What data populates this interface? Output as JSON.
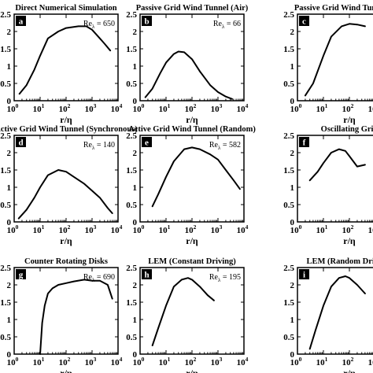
{
  "chart_data": [
    {
      "type": "line",
      "badge": "a",
      "title": "Direct Numerical Simulation",
      "re_label": "Re",
      "re_sub": "λ",
      "re_value": "= 650",
      "xlabel": "r/η",
      "xscale": "log",
      "xlim": [
        1,
        10000
      ],
      "ylim": [
        0,
        2.5
      ],
      "yticks": [
        "0",
        "0.5",
        "1",
        "1.5",
        "2",
        "2.5"
      ],
      "xticks": [
        {
          "base": "10",
          "exp": "0"
        },
        {
          "base": "10",
          "exp": "1"
        },
        {
          "base": "10",
          "exp": "2"
        },
        {
          "base": "10",
          "exp": "3"
        },
        {
          "base": "10",
          "exp": "4"
        }
      ],
      "series": [
        {
          "x": [
            1.6,
            3,
            6,
            10,
            20,
            50,
            100,
            300,
            600,
            1000,
            2000,
            3000,
            5000
          ],
          "y": [
            0.2,
            0.45,
            0.9,
            1.3,
            1.8,
            2.0,
            2.1,
            2.15,
            2.15,
            2.05,
            1.8,
            1.65,
            1.45
          ]
        }
      ]
    },
    {
      "type": "line",
      "badge": "b",
      "title": "Passive Grid Wind Tunnel (Air)",
      "re_label": "Re",
      "re_sub": "λ",
      "re_value": "= 66",
      "xlabel": "r/η",
      "xscale": "log",
      "xlim": [
        1,
        10000
      ],
      "ylim": [
        0,
        2.5
      ],
      "yticks": [
        "0",
        "0.5",
        "1",
        "1.5",
        "2",
        "2.5"
      ],
      "xticks": [
        {
          "base": "10",
          "exp": "0"
        },
        {
          "base": "10",
          "exp": "1"
        },
        {
          "base": "10",
          "exp": "2"
        },
        {
          "base": "10",
          "exp": "3"
        },
        {
          "base": "10",
          "exp": "4"
        }
      ],
      "series": [
        {
          "x": [
            1.6,
            3,
            6,
            10,
            20,
            30,
            50,
            100,
            200,
            500,
            1000,
            2000,
            3500
          ],
          "y": [
            0.1,
            0.35,
            0.8,
            1.1,
            1.35,
            1.42,
            1.4,
            1.2,
            0.85,
            0.45,
            0.25,
            0.12,
            0.05
          ]
        }
      ]
    },
    {
      "type": "line",
      "badge": "c",
      "title": "Passive Grid Wind Tunnel (He)",
      "re_label": "Re",
      "re_sub": "λ",
      "re_value": "",
      "xlabel": "r/η",
      "xscale": "log",
      "xlim": [
        1,
        10000
      ],
      "ylim": [
        0,
        2.5
      ],
      "yticks": [
        "0",
        "0.5",
        "1",
        "1.5",
        "2",
        "2.5"
      ],
      "xticks": [
        {
          "base": "10",
          "exp": "0"
        },
        {
          "base": "10",
          "exp": "1"
        },
        {
          "base": "10",
          "exp": "2"
        },
        {
          "base": "10",
          "exp": "3"
        },
        {
          "base": "10",
          "exp": "4"
        }
      ],
      "series": [
        {
          "x": [
            2,
            4,
            10,
            20,
            50,
            100,
            200,
            400
          ],
          "y": [
            0.15,
            0.5,
            1.3,
            1.85,
            2.15,
            2.22,
            2.2,
            2.15
          ]
        }
      ]
    },
    {
      "type": "line",
      "badge": "d",
      "title": "Active Grid Wind Tunnel (Synchronous)",
      "re_label": "Re",
      "re_sub": "λ",
      "re_value": "= 140",
      "xlabel": "r/η",
      "xscale": "log",
      "xlim": [
        1,
        10000
      ],
      "ylim": [
        0,
        2.5
      ],
      "yticks": [
        "0",
        "0.5",
        "1",
        "1.5",
        "2",
        "2.5"
      ],
      "xticks": [
        {
          "base": "10",
          "exp": "0"
        },
        {
          "base": "10",
          "exp": "1"
        },
        {
          "base": "10",
          "exp": "2"
        },
        {
          "base": "10",
          "exp": "3"
        },
        {
          "base": "10",
          "exp": "4"
        }
      ],
      "series": [
        {
          "x": [
            1.5,
            3,
            6,
            10,
            20,
            50,
            100,
            200,
            500,
            1000,
            2000,
            4000,
            6000
          ],
          "y": [
            0.1,
            0.35,
            0.7,
            1.0,
            1.35,
            1.5,
            1.45,
            1.3,
            1.1,
            0.9,
            0.7,
            0.4,
            0.25
          ]
        }
      ]
    },
    {
      "type": "line",
      "badge": "e",
      "title": "Active Grid Wind Tunnel (Random)",
      "re_label": "Re",
      "re_sub": "λ",
      "re_value": "= 582",
      "xlabel": "r/η",
      "xscale": "log",
      "xlim": [
        1,
        10000
      ],
      "ylim": [
        0,
        2.5
      ],
      "yticks": [
        "0",
        "0.5",
        "1",
        "1.5",
        "2",
        "2.5"
      ],
      "xticks": [
        {
          "base": "10",
          "exp": "0"
        },
        {
          "base": "10",
          "exp": "1"
        },
        {
          "base": "10",
          "exp": "2"
        },
        {
          "base": "10",
          "exp": "3"
        },
        {
          "base": "10",
          "exp": "4"
        }
      ],
      "series": [
        {
          "x": [
            3,
            5,
            10,
            20,
            50,
            100,
            200,
            500,
            1000,
            2000,
            4000,
            7000
          ],
          "y": [
            0.45,
            0.8,
            1.3,
            1.75,
            2.1,
            2.15,
            2.1,
            1.95,
            1.8,
            1.5,
            1.2,
            0.95
          ]
        }
      ]
    },
    {
      "type": "line",
      "badge": "f",
      "title": "Oscillating Grid",
      "re_label": "Re",
      "re_sub": "λ",
      "re_value": "",
      "xlabel": "r/η",
      "xscale": "log",
      "xlim": [
        1,
        10000
      ],
      "ylim": [
        0,
        2.5
      ],
      "yticks": [
        "0",
        "0.5",
        "1",
        "1.5",
        "2",
        "2.5"
      ],
      "xticks": [
        {
          "base": "10",
          "exp": "0"
        },
        {
          "base": "10",
          "exp": "1"
        },
        {
          "base": "10",
          "exp": "2"
        },
        {
          "base": "10",
          "exp": "3"
        },
        {
          "base": "10",
          "exp": "4"
        }
      ],
      "series": [
        {
          "x": [
            3,
            6,
            10,
            20,
            40,
            70,
            100,
            200,
            400
          ],
          "y": [
            1.2,
            1.45,
            1.7,
            2.0,
            2.1,
            2.05,
            1.9,
            1.6,
            1.65
          ]
        }
      ]
    },
    {
      "type": "line",
      "badge": "g",
      "title": "Counter Rotating Disks",
      "re_label": "Re",
      "re_sub": "λ",
      "re_value": "= 690",
      "xlabel": "r/η",
      "xscale": "log",
      "xlim": [
        1,
        10000
      ],
      "ylim": [
        0,
        2.5
      ],
      "yticks": [
        "0",
        "0.5",
        "1",
        "1.5",
        "2",
        "2.5"
      ],
      "xticks": [
        {
          "base": "10",
          "exp": "0"
        },
        {
          "base": "10",
          "exp": "1"
        },
        {
          "base": "10",
          "exp": "2"
        },
        {
          "base": "10",
          "exp": "3"
        },
        {
          "base": "10",
          "exp": "4"
        }
      ],
      "series": [
        {
          "x": [
            10,
            12,
            15,
            20,
            30,
            50,
            100,
            200,
            500,
            1000,
            2000,
            4000,
            6000
          ],
          "y": [
            0.0,
            0.9,
            1.4,
            1.75,
            1.9,
            2.0,
            2.05,
            2.1,
            2.15,
            2.12,
            2.12,
            2.0,
            1.6
          ]
        }
      ]
    },
    {
      "type": "line",
      "badge": "h",
      "title": "LEM (Constant Driving)",
      "re_label": "Re",
      "re_sub": "λ",
      "re_value": "= 195",
      "xlabel": "r/η",
      "xscale": "log",
      "xlim": [
        1,
        10000
      ],
      "ylim": [
        0,
        2.5
      ],
      "yticks": [
        "0",
        "0.5",
        "1",
        "1.5",
        "2",
        "2.5"
      ],
      "xticks": [
        {
          "base": "10",
          "exp": "0"
        },
        {
          "base": "10",
          "exp": "1"
        },
        {
          "base": "10",
          "exp": "2"
        },
        {
          "base": "10",
          "exp": "3"
        },
        {
          "base": "10",
          "exp": "4"
        }
      ],
      "series": [
        {
          "x": [
            3,
            5,
            10,
            20,
            40,
            70,
            100,
            200,
            400,
            700
          ],
          "y": [
            0.25,
            0.75,
            1.4,
            1.95,
            2.15,
            2.2,
            2.15,
            1.95,
            1.7,
            1.55
          ]
        }
      ]
    },
    {
      "type": "line",
      "badge": "i",
      "title": "LEM (Random Driving)",
      "re_label": "Re",
      "re_sub": "λ",
      "re_value": "",
      "xlabel": "r/η",
      "xscale": "log",
      "xlim": [
        1,
        10000
      ],
      "ylim": [
        0,
        2.5
      ],
      "yticks": [
        "0",
        "0.5",
        "1",
        "1.5",
        "2",
        "2.5"
      ],
      "xticks": [
        {
          "base": "10",
          "exp": "0"
        },
        {
          "base": "10",
          "exp": "1"
        },
        {
          "base": "10",
          "exp": "2"
        },
        {
          "base": "10",
          "exp": "3"
        },
        {
          "base": "10",
          "exp": "4"
        }
      ],
      "series": [
        {
          "x": [
            3,
            5,
            10,
            20,
            40,
            70,
            100,
            200,
            400
          ],
          "y": [
            0.15,
            0.7,
            1.4,
            1.95,
            2.2,
            2.25,
            2.2,
            2.0,
            1.75
          ]
        }
      ]
    }
  ]
}
